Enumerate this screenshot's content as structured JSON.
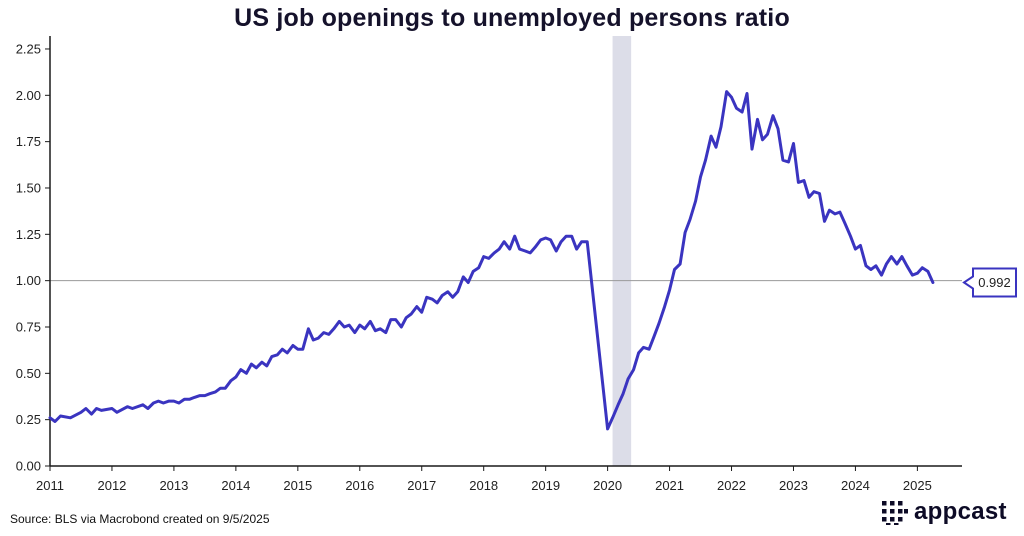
{
  "colors": {
    "line": "#3a34c0",
    "recession": "#dcdde8",
    "axis": "#1a1a1a",
    "reference": "#9a9a9a",
    "title": "#15122b",
    "logo": "#0d0b26"
  },
  "source": "Source: BLS via Macrobond created on 9/5/2025",
  "logo": {
    "text": "appcast",
    "icon": "appcast-logo-icon"
  },
  "chart_data": {
    "type": "line",
    "title": "US job openings to unemployed persons ratio",
    "xlabel": "",
    "ylabel": "",
    "xlim": [
      2011.0,
      2025.72
    ],
    "ylim": [
      0,
      2.32
    ],
    "y_ticks": [
      "0.00",
      "0.25",
      "0.50",
      "0.75",
      "1.00",
      "1.25",
      "1.50",
      "1.75",
      "2.00",
      "2.25"
    ],
    "x_ticks": [
      "2011",
      "2012",
      "2013",
      "2014",
      "2015",
      "2016",
      "2017",
      "2018",
      "2019",
      "2020",
      "2021",
      "2022",
      "2023",
      "2024",
      "2025"
    ],
    "reference_line": 1.0,
    "shaded_regions": [
      {
        "label": "Recession",
        "start": 2020.08,
        "end": 2020.38
      }
    ],
    "end_label": "0.992",
    "series": [
      {
        "name": "Job openings to unemployed persons ratio",
        "points": [
          [
            2011.0,
            0.26
          ],
          [
            2011.08,
            0.24
          ],
          [
            2011.17,
            0.27
          ],
          [
            2011.33,
            0.26
          ],
          [
            2011.5,
            0.29
          ],
          [
            2011.58,
            0.31
          ],
          [
            2011.67,
            0.28
          ],
          [
            2011.75,
            0.31
          ],
          [
            2011.83,
            0.3
          ],
          [
            2012.0,
            0.31
          ],
          [
            2012.08,
            0.29
          ],
          [
            2012.25,
            0.32
          ],
          [
            2012.33,
            0.31
          ],
          [
            2012.5,
            0.33
          ],
          [
            2012.58,
            0.31
          ],
          [
            2012.67,
            0.34
          ],
          [
            2012.75,
            0.35
          ],
          [
            2012.83,
            0.34
          ],
          [
            2012.92,
            0.35
          ],
          [
            2013.0,
            0.35
          ],
          [
            2013.08,
            0.34
          ],
          [
            2013.17,
            0.36
          ],
          [
            2013.25,
            0.36
          ],
          [
            2013.33,
            0.37
          ],
          [
            2013.42,
            0.38
          ],
          [
            2013.5,
            0.38
          ],
          [
            2013.58,
            0.39
          ],
          [
            2013.67,
            0.4
          ],
          [
            2013.75,
            0.42
          ],
          [
            2013.83,
            0.42
          ],
          [
            2013.92,
            0.46
          ],
          [
            2014.0,
            0.48
          ],
          [
            2014.08,
            0.52
          ],
          [
            2014.17,
            0.5
          ],
          [
            2014.25,
            0.55
          ],
          [
            2014.33,
            0.53
          ],
          [
            2014.42,
            0.56
          ],
          [
            2014.5,
            0.54
          ],
          [
            2014.58,
            0.59
          ],
          [
            2014.67,
            0.6
          ],
          [
            2014.75,
            0.63
          ],
          [
            2014.83,
            0.61
          ],
          [
            2014.92,
            0.65
          ],
          [
            2015.0,
            0.63
          ],
          [
            2015.08,
            0.63
          ],
          [
            2015.17,
            0.74
          ],
          [
            2015.25,
            0.68
          ],
          [
            2015.33,
            0.69
          ],
          [
            2015.42,
            0.72
          ],
          [
            2015.5,
            0.71
          ],
          [
            2015.58,
            0.74
          ],
          [
            2015.67,
            0.78
          ],
          [
            2015.75,
            0.75
          ],
          [
            2015.83,
            0.76
          ],
          [
            2015.92,
            0.72
          ],
          [
            2016.0,
            0.76
          ],
          [
            2016.08,
            0.74
          ],
          [
            2016.17,
            0.78
          ],
          [
            2016.25,
            0.73
          ],
          [
            2016.33,
            0.74
          ],
          [
            2016.42,
            0.72
          ],
          [
            2016.5,
            0.79
          ],
          [
            2016.58,
            0.79
          ],
          [
            2016.67,
            0.75
          ],
          [
            2016.75,
            0.8
          ],
          [
            2016.83,
            0.82
          ],
          [
            2016.92,
            0.86
          ],
          [
            2017.0,
            0.83
          ],
          [
            2017.08,
            0.91
          ],
          [
            2017.17,
            0.9
          ],
          [
            2017.25,
            0.88
          ],
          [
            2017.33,
            0.92
          ],
          [
            2017.42,
            0.94
          ],
          [
            2017.5,
            0.91
          ],
          [
            2017.58,
            0.94
          ],
          [
            2017.67,
            1.02
          ],
          [
            2017.75,
            0.99
          ],
          [
            2017.83,
            1.05
          ],
          [
            2017.92,
            1.07
          ],
          [
            2018.0,
            1.13
          ],
          [
            2018.08,
            1.12
          ],
          [
            2018.17,
            1.15
          ],
          [
            2018.25,
            1.17
          ],
          [
            2018.33,
            1.21
          ],
          [
            2018.42,
            1.17
          ],
          [
            2018.5,
            1.24
          ],
          [
            2018.58,
            1.17
          ],
          [
            2018.67,
            1.16
          ],
          [
            2018.75,
            1.15
          ],
          [
            2018.83,
            1.18
          ],
          [
            2018.92,
            1.22
          ],
          [
            2019.0,
            1.23
          ],
          [
            2019.08,
            1.22
          ],
          [
            2019.17,
            1.16
          ],
          [
            2019.25,
            1.21
          ],
          [
            2019.33,
            1.24
          ],
          [
            2019.42,
            1.24
          ],
          [
            2019.5,
            1.17
          ],
          [
            2019.58,
            1.21
          ],
          [
            2019.67,
            1.21
          ],
          [
            2020.0,
            0.2
          ],
          [
            2020.08,
            0.26
          ],
          [
            2020.17,
            0.33
          ],
          [
            2020.25,
            0.39
          ],
          [
            2020.33,
            0.47
          ],
          [
            2020.42,
            0.52
          ],
          [
            2020.5,
            0.61
          ],
          [
            2020.58,
            0.64
          ],
          [
            2020.67,
            0.63
          ],
          [
            2020.75,
            0.7
          ],
          [
            2020.83,
            0.77
          ],
          [
            2020.92,
            0.86
          ],
          [
            2021.0,
            0.95
          ],
          [
            2021.08,
            1.06
          ],
          [
            2021.17,
            1.09
          ],
          [
            2021.25,
            1.26
          ],
          [
            2021.33,
            1.33
          ],
          [
            2021.42,
            1.43
          ],
          [
            2021.5,
            1.56
          ],
          [
            2021.58,
            1.65
          ],
          [
            2021.67,
            1.78
          ],
          [
            2021.75,
            1.72
          ],
          [
            2021.83,
            1.83
          ],
          [
            2021.92,
            2.02
          ],
          [
            2022.0,
            1.99
          ],
          [
            2022.08,
            1.93
          ],
          [
            2022.17,
            1.91
          ],
          [
            2022.25,
            2.01
          ],
          [
            2022.33,
            1.71
          ],
          [
            2022.42,
            1.87
          ],
          [
            2022.5,
            1.76
          ],
          [
            2022.58,
            1.79
          ],
          [
            2022.67,
            1.89
          ],
          [
            2022.75,
            1.82
          ],
          [
            2022.83,
            1.65
          ],
          [
            2022.92,
            1.64
          ],
          [
            2023.0,
            1.74
          ],
          [
            2023.08,
            1.53
          ],
          [
            2023.17,
            1.54
          ],
          [
            2023.25,
            1.45
          ],
          [
            2023.33,
            1.48
          ],
          [
            2023.42,
            1.47
          ],
          [
            2023.5,
            1.32
          ],
          [
            2023.58,
            1.38
          ],
          [
            2023.67,
            1.36
          ],
          [
            2023.75,
            1.37
          ],
          [
            2023.83,
            1.31
          ],
          [
            2023.92,
            1.24
          ],
          [
            2024.0,
            1.17
          ],
          [
            2024.08,
            1.19
          ],
          [
            2024.17,
            1.08
          ],
          [
            2024.25,
            1.06
          ],
          [
            2024.33,
            1.08
          ],
          [
            2024.42,
            1.03
          ],
          [
            2024.5,
            1.09
          ],
          [
            2024.58,
            1.13
          ],
          [
            2024.67,
            1.09
          ],
          [
            2024.75,
            1.13
          ],
          [
            2024.83,
            1.08
          ],
          [
            2024.92,
            1.03
          ],
          [
            2025.0,
            1.04
          ],
          [
            2025.08,
            1.07
          ],
          [
            2025.17,
            1.05
          ],
          [
            2025.25,
            0.99
          ]
        ]
      }
    ]
  }
}
